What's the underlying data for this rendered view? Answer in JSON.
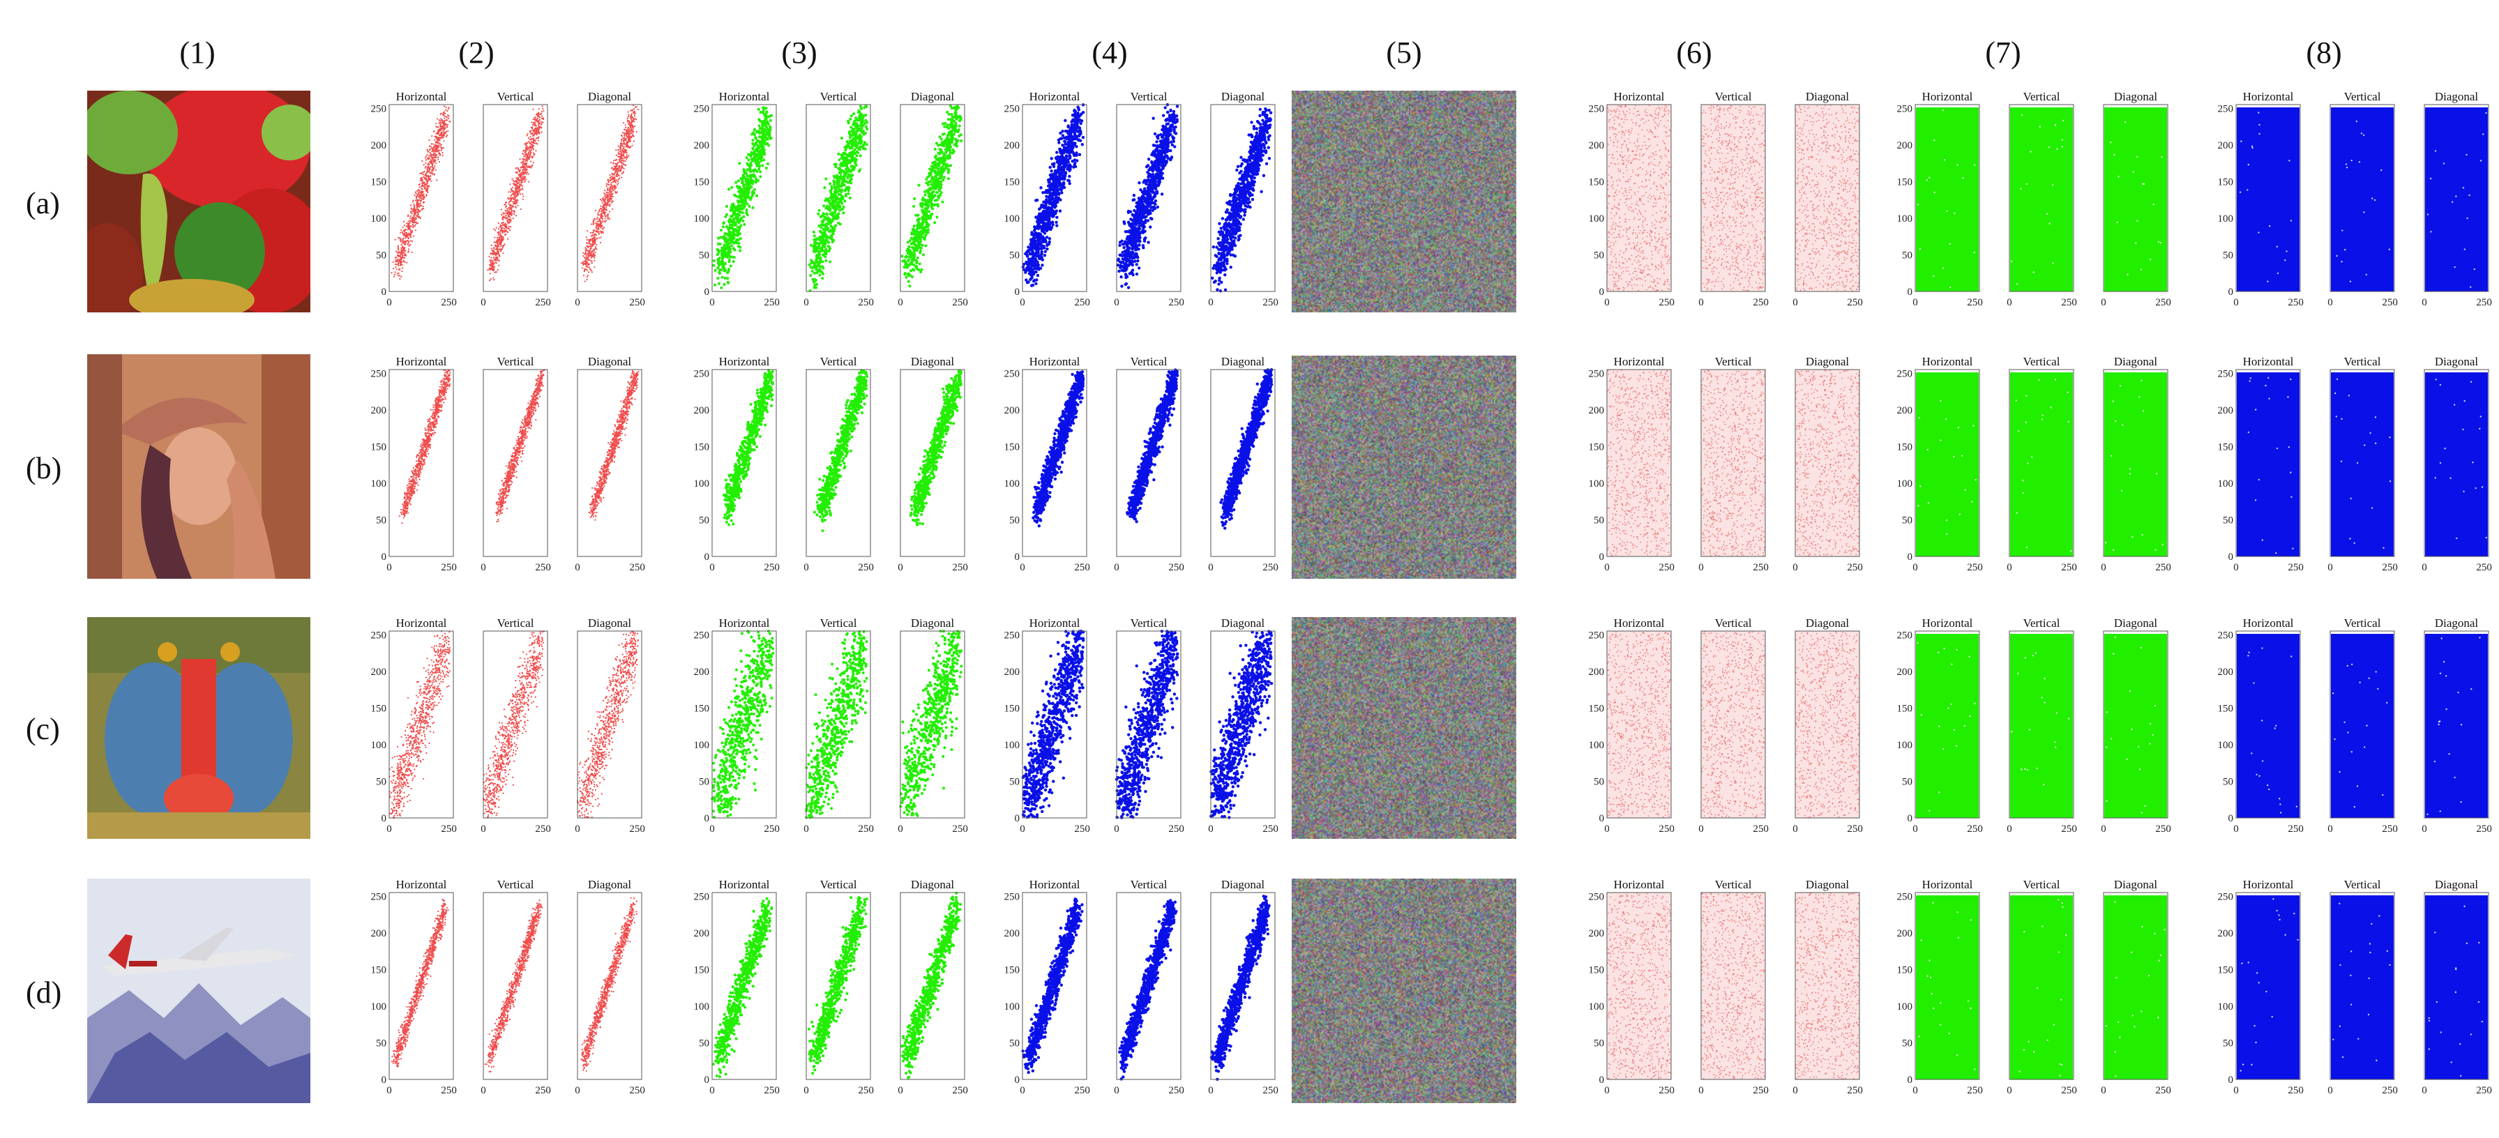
{
  "column_labels": [
    "(1)",
    "(2)",
    "(3)",
    "(4)",
    "(5)",
    "(6)",
    "(7)",
    "(8)"
  ],
  "row_labels": [
    "(a)",
    "(b)",
    "(c)",
    "(d)"
  ],
  "panel_titles": [
    "Horizontal",
    "Vertical",
    "Diagonal"
  ],
  "axis": {
    "y_ticks": [
      "0",
      "50",
      "100",
      "150",
      "200",
      "250"
    ],
    "x_ticks": [
      "0",
      "250"
    ]
  },
  "images": [
    "peppers",
    "lena",
    "baboon",
    "airplane"
  ],
  "colors": {
    "red": "#f04a4a",
    "red_light": "#f3a3a3",
    "green": "#22ee00",
    "blue": "#0a10e8"
  }
}
